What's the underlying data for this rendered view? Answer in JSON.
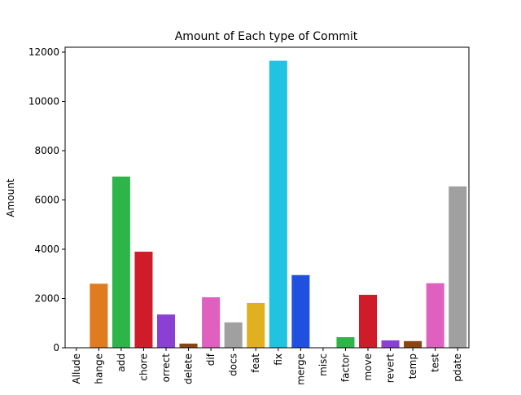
{
  "chart_data": {
    "type": "bar",
    "title": "Amount of Each type of Commit",
    "xlabel": "",
    "ylabel": "Amount",
    "ylim": [
      0,
      12000
    ],
    "yticks": [
      0,
      2000,
      4000,
      6000,
      8000,
      10000,
      12000
    ],
    "ytick_labels": [
      "0",
      "2000",
      "4000",
      "6000",
      "8000",
      "10000",
      "12000"
    ],
    "categories": [
      "Allude",
      "hange",
      "add",
      "chore",
      "orrect",
      "delete",
      "dif",
      "docs",
      "feat",
      "fix",
      "merge",
      "misc",
      "factor",
      "move",
      "revert",
      "temp",
      "test",
      "pdate"
    ],
    "values": [
      0,
      2600,
      6950,
      3900,
      1350,
      170,
      2050,
      1030,
      1820,
      11650,
      2950,
      0,
      430,
      2150,
      300,
      270,
      2620,
      6550
    ],
    "colors": [
      "#1f77b4",
      "#e07b20",
      "#2db54a",
      "#d01c28",
      "#8b40d4",
      "#8b4513",
      "#e060c0",
      "#a0a0a0",
      "#e0b020",
      "#20c4e0",
      "#2050e0",
      "#1f77b4",
      "#2db54a",
      "#d01c28",
      "#8b40d4",
      "#8b4513",
      "#e060c0",
      "#a0a0a0"
    ],
    "grid": false,
    "legend": "none"
  }
}
